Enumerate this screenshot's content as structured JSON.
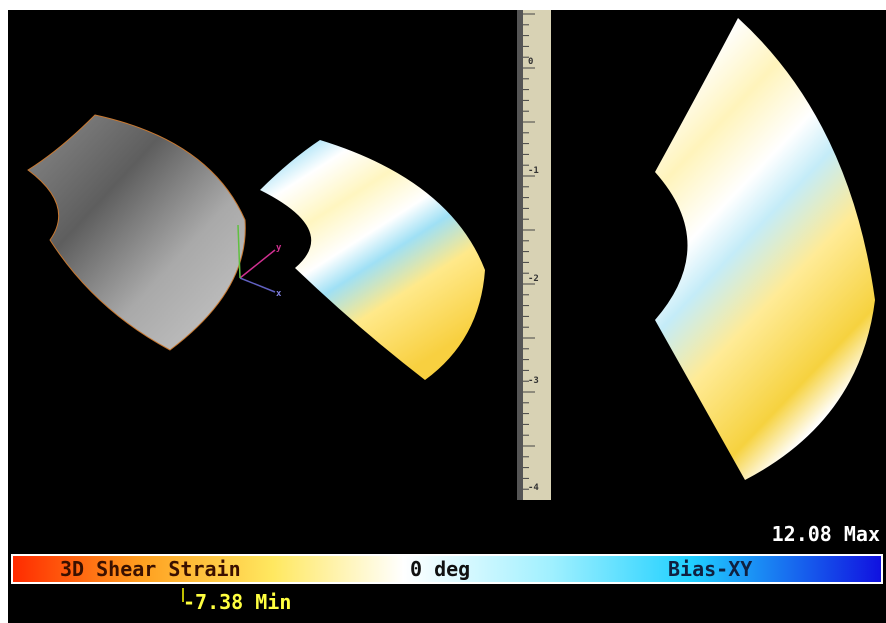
{
  "viewer": {
    "ruler_labels": [
      "0",
      "-1",
      "-2",
      "-3",
      "-4"
    ],
    "axis_labels": {
      "y": "y",
      "x": "x"
    },
    "colorbar": {
      "max_label": "12.08 Max",
      "min_label": "-7.38 Min",
      "title": "3D Shear Strain",
      "center_label": "0 deg",
      "mode_label": "Bias-XY"
    }
  }
}
